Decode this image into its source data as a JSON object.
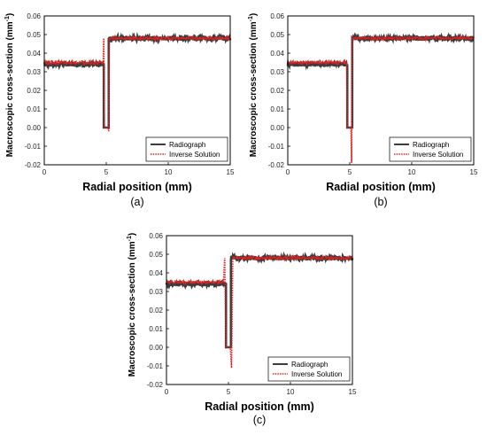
{
  "figure": {
    "ylabel": "Macroscopic cross-section (mm",
    "ylabel_sup": "-1",
    "ylabel_close": ")",
    "xlabel": "Radial position (mm)"
  },
  "colors": {
    "radiograph": "#3d3d3d",
    "inverse_solution": "#e02020",
    "axis": "#000000"
  },
  "chart_data": [
    {
      "type": "line",
      "caption": "(a)",
      "xlabel": "Radial position (mm)",
      "ylabel": "Macroscopic cross-section (mm-1)",
      "xlim": [
        0,
        15
      ],
      "ylim": [
        -0.02,
        0.06
      ],
      "xticks": [
        "0",
        "5",
        "10",
        "15"
      ],
      "yticks": [
        "-0.02",
        "-0.01",
        "0.00",
        "0.01",
        "0.02",
        "0.03",
        "0.04",
        "0.05",
        "0.06"
      ],
      "legend": {
        "placement": "bottom-right",
        "entries": [
          "Radiograph",
          "Inverse Solution"
        ]
      },
      "series": [
        {
          "name": "Radiograph",
          "style": "solid",
          "noise": 0.0012,
          "x": [
            0,
            4.8,
            4.8,
            5.2,
            5.2,
            15
          ],
          "y": [
            0.034,
            0.034,
            0.0,
            0.0,
            0.048,
            0.048
          ]
        },
        {
          "name": "Inverse Solution",
          "style": "dotted",
          "noise": 0.0008,
          "x": [
            0,
            4.75,
            4.8,
            4.85,
            5.15,
            5.2,
            5.25,
            15
          ],
          "y": [
            0.035,
            0.035,
            0.048,
            0.0,
            0.0,
            -0.002,
            0.048,
            0.048
          ]
        }
      ]
    },
    {
      "type": "line",
      "caption": "(b)",
      "xlabel": "Radial position (mm)",
      "ylabel": "Macroscopic cross-section (mm-1)",
      "xlim": [
        0,
        15
      ],
      "ylim": [
        -0.02,
        0.06
      ],
      "xticks": [
        "0",
        "5",
        "10",
        "15"
      ],
      "yticks": [
        "-0.02",
        "-0.01",
        "0.00",
        "0.01",
        "0.02",
        "0.03",
        "0.04",
        "0.05",
        "0.06"
      ],
      "legend": {
        "placement": "bottom-right",
        "entries": [
          "Radiograph",
          "Inverse Solution"
        ]
      },
      "series": [
        {
          "name": "Radiograph",
          "style": "solid",
          "noise": 0.0012,
          "x": [
            0,
            4.8,
            4.8,
            5.2,
            5.2,
            15
          ],
          "y": [
            0.034,
            0.034,
            0.0,
            0.0,
            0.048,
            0.048
          ]
        },
        {
          "name": "Inverse Solution",
          "style": "dotted",
          "noise": 0.0008,
          "x": [
            0,
            4.75,
            4.8,
            4.85,
            5.1,
            5.15,
            5.2,
            15
          ],
          "y": [
            0.035,
            0.035,
            0.0,
            0.0,
            0.0,
            -0.019,
            0.048,
            0.048
          ]
        }
      ]
    },
    {
      "type": "line",
      "caption": "(c)",
      "xlabel": "Radial position (mm)",
      "ylabel": "Macroscopic cross-section (mm-1)",
      "xlim": [
        0,
        15
      ],
      "ylim": [
        -0.02,
        0.06
      ],
      "xticks": [
        "0",
        "5",
        "10",
        "15"
      ],
      "yticks": [
        "-0.02",
        "-0.01",
        "0.00",
        "0.01",
        "0.02",
        "0.03",
        "0.04",
        "0.05",
        "0.06"
      ],
      "legend": {
        "placement": "bottom-right",
        "entries": [
          "Radiograph",
          "Inverse Solution"
        ]
      },
      "series": [
        {
          "name": "Radiograph",
          "style": "solid",
          "noise": 0.0012,
          "x": [
            0,
            4.8,
            4.8,
            5.2,
            5.2,
            15
          ],
          "y": [
            0.034,
            0.034,
            0.0,
            0.0,
            0.048,
            0.048
          ]
        },
        {
          "name": "Inverse Solution",
          "style": "dotted",
          "noise": 0.0008,
          "x": [
            0,
            4.6,
            4.7,
            4.8,
            5.15,
            5.25,
            5.35,
            15
          ],
          "y": [
            0.035,
            0.035,
            0.048,
            0.0,
            0.0,
            -0.011,
            0.048,
            0.048
          ]
        }
      ]
    }
  ]
}
